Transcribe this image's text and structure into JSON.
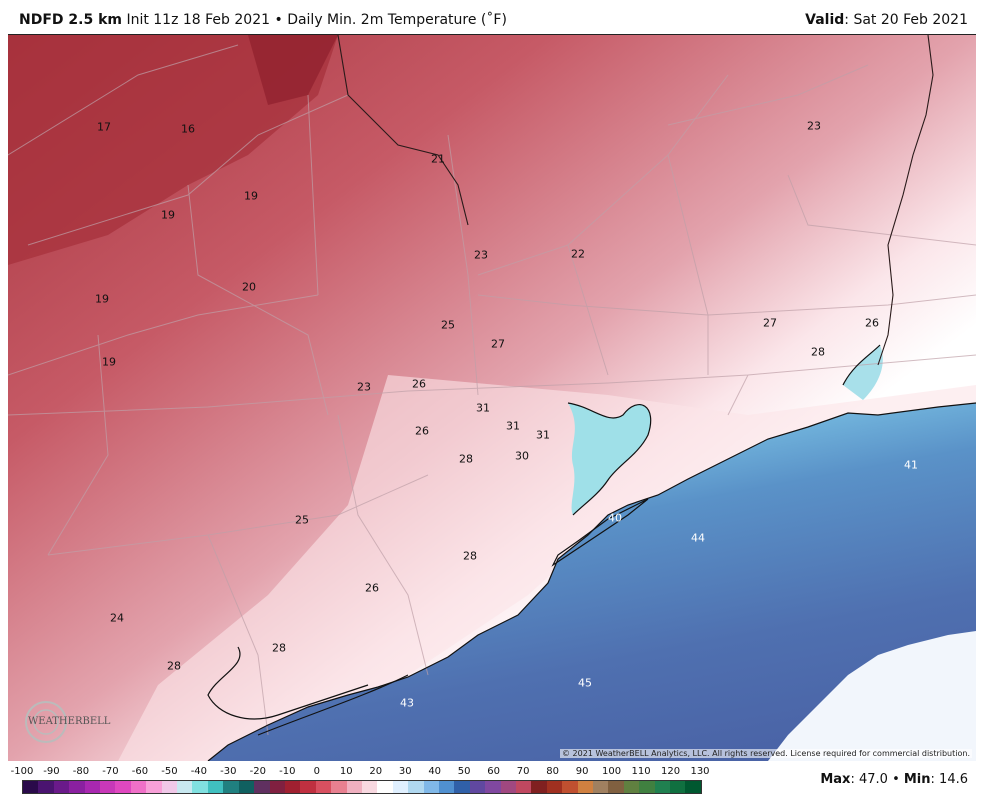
{
  "header": {
    "product": "NDFD 2.5 km",
    "init": "Init 11z 18 Feb 2021",
    "separator": "•",
    "field": "Daily Min. 2m Temperature (˚F)",
    "valid_label": "Valid",
    "valid_value": ": Sat 20 Feb 2021"
  },
  "map": {
    "labels": [
      {
        "text": "17"
      },
      {
        "text": "16"
      },
      {
        "text": "21"
      },
      {
        "text": "23"
      },
      {
        "text": "19"
      },
      {
        "text": "19"
      },
      {
        "text": "23"
      },
      {
        "text": "22"
      },
      {
        "text": "20"
      },
      {
        "text": "19"
      },
      {
        "text": "25"
      },
      {
        "text": "27"
      },
      {
        "text": "27"
      },
      {
        "text": "26"
      },
      {
        "text": "28"
      },
      {
        "text": "19"
      },
      {
        "text": "23"
      },
      {
        "text": "26"
      },
      {
        "text": "31"
      },
      {
        "text": "31"
      },
      {
        "text": "31"
      },
      {
        "text": "26"
      },
      {
        "text": "28"
      },
      {
        "text": "30"
      },
      {
        "text": "41"
      },
      {
        "text": "40"
      },
      {
        "text": "25"
      },
      {
        "text": "44"
      },
      {
        "text": "28"
      },
      {
        "text": "26"
      },
      {
        "text": "24"
      },
      {
        "text": "28"
      },
      {
        "text": "28"
      },
      {
        "text": "45"
      },
      {
        "text": "43"
      }
    ],
    "copyright": "© 2021 WeatherBELL Analytics, LLC. All rights reserved. License required for commercial distribution.",
    "logo_text": "WEATHERBELL"
  },
  "colorbar": {
    "ticks": [
      "-100",
      "-90",
      "-80",
      "-70",
      "-60",
      "-50",
      "-40",
      "-30",
      "-20",
      "-10",
      "0",
      "10",
      "20",
      "30",
      "40",
      "50",
      "60",
      "70",
      "80",
      "90",
      "100",
      "110",
      "120",
      "130"
    ],
    "colors": [
      "#2a0a4a",
      "#4a1470",
      "#6a1a8a",
      "#8a20a0",
      "#a828b0",
      "#c838b8",
      "#e048c0",
      "#f070c8",
      "#f8a0d8",
      "#f0c8e8",
      "#c8e8f0",
      "#80e0e0",
      "#40c0c0",
      "#208080",
      "#106060",
      "#603060",
      "#802040",
      "#a02030",
      "#c03040",
      "#d85060",
      "#e88090",
      "#f0b0c0",
      "#f8d8e0",
      "#ffffff",
      "#e0f0ff",
      "#b0d8f0",
      "#80b8e8",
      "#5090d0",
      "#3060a8",
      "#6048a0",
      "#8048a0",
      "#a04880",
      "#c04860",
      "#802020",
      "#a03020",
      "#c05030",
      "#d08040",
      "#a08060",
      "#806040",
      "#608040",
      "#408040",
      "#208050",
      "#107040",
      "#005830"
    ],
    "max_label": "Max",
    "max_value": ": 47.0",
    "sep": "•",
    "min_label": "Min",
    "min_value": ": 14.6"
  }
}
